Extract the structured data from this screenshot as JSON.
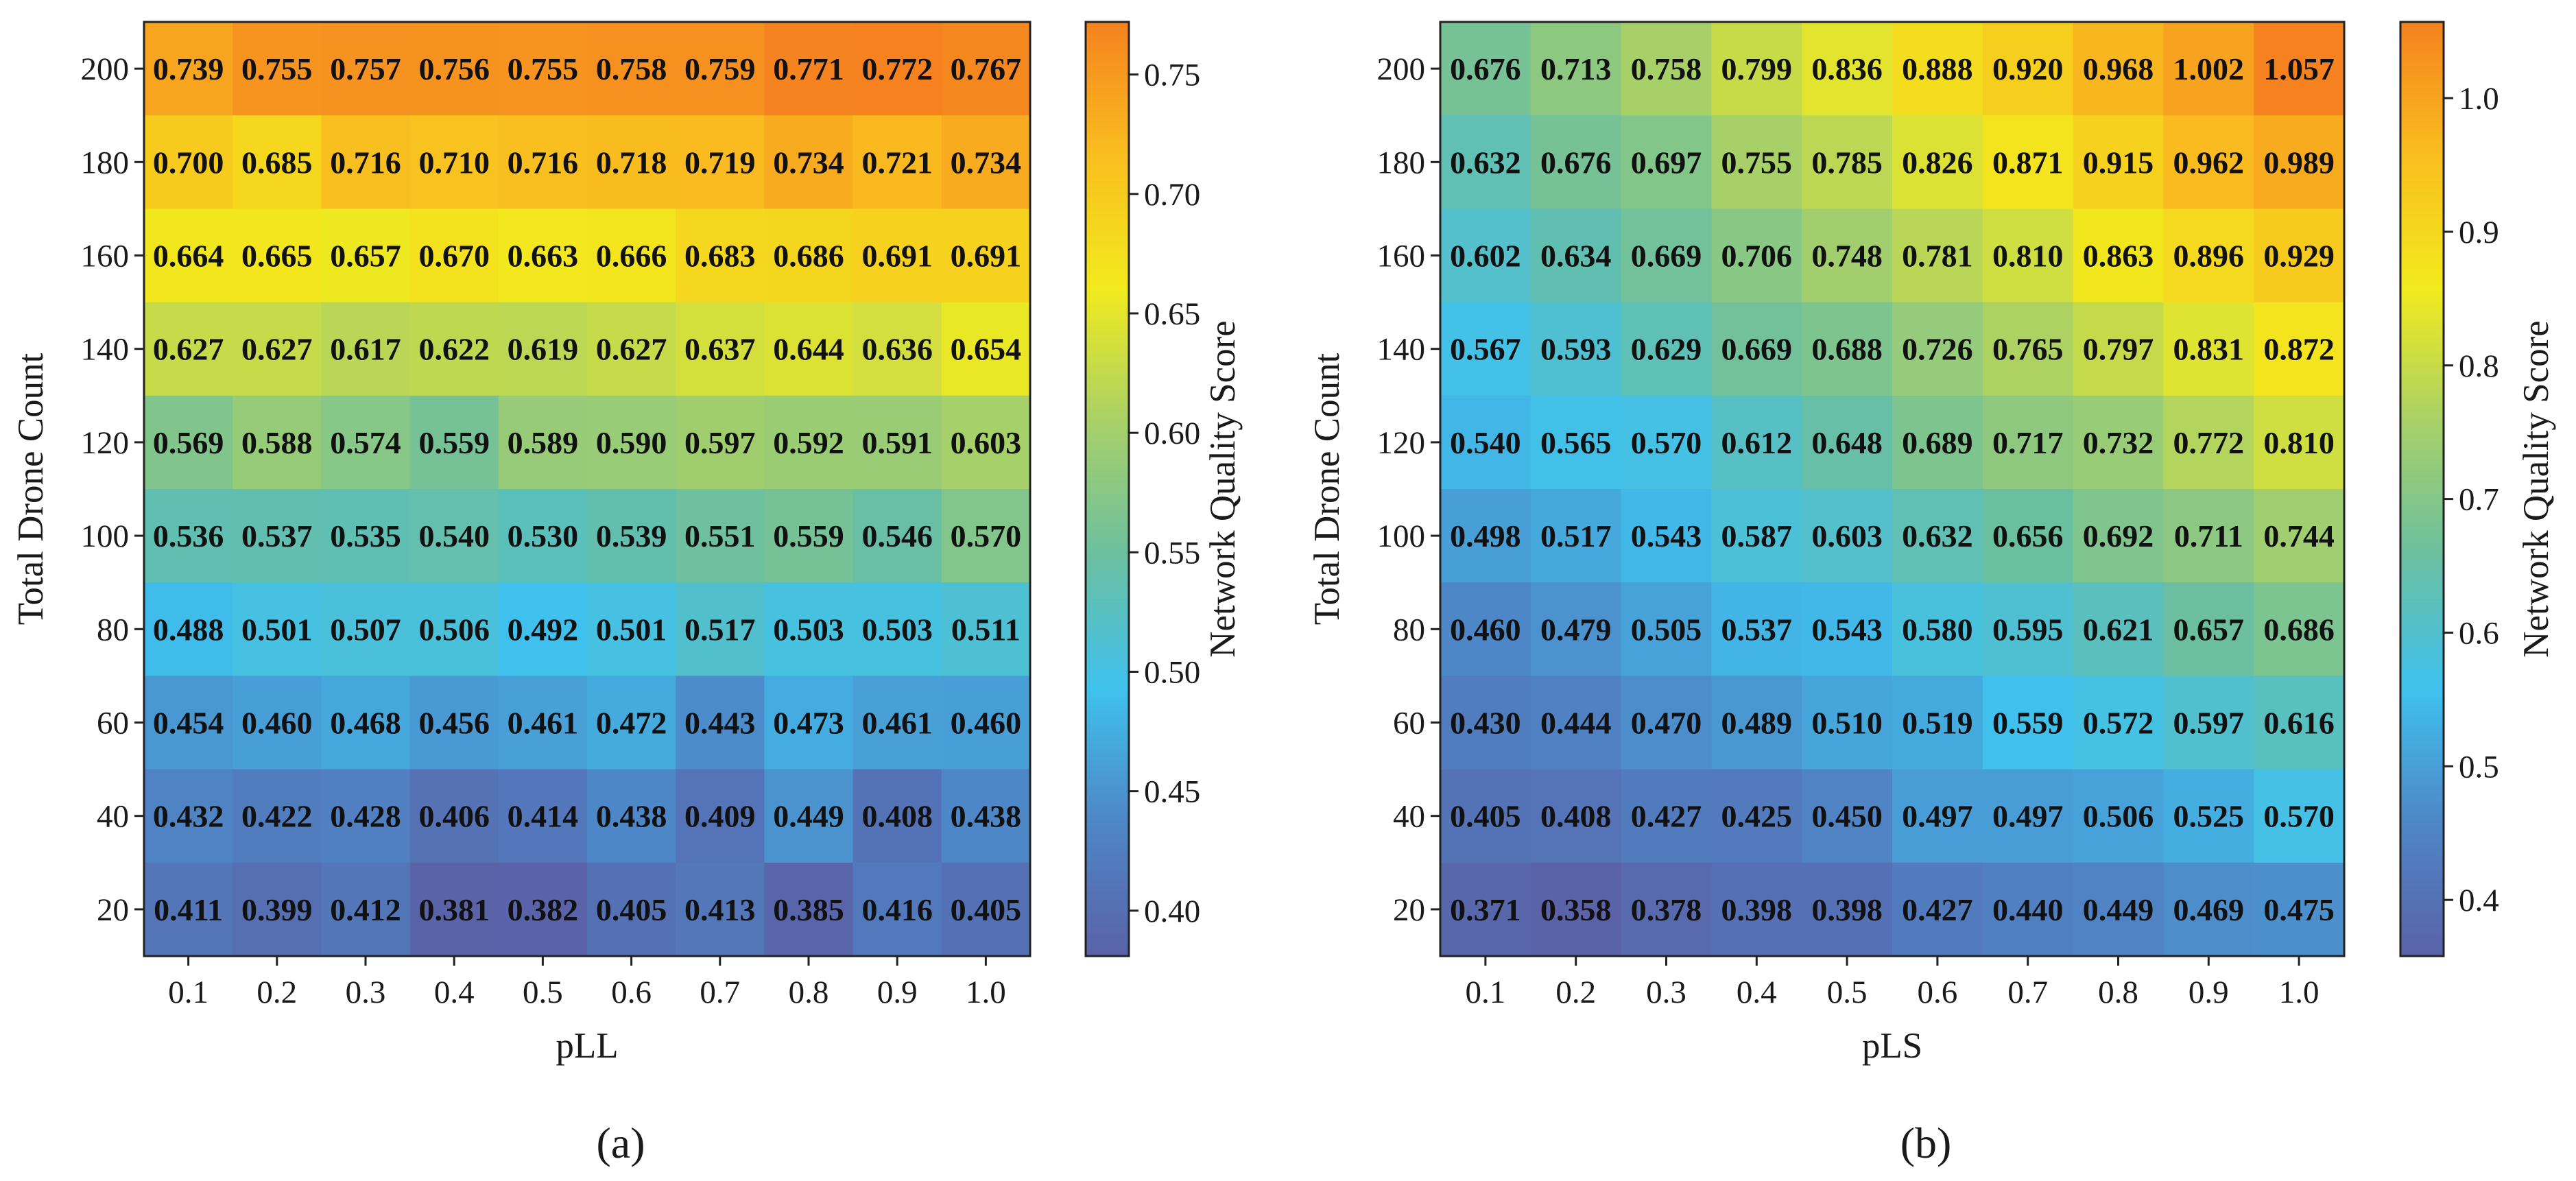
{
  "chart_data": [
    {
      "type": "heatmap",
      "panel_label": "(a)",
      "xlabel": "pLL",
      "ylabel": "Total Drone Count",
      "colorbar_label": "Network Quality Score",
      "x": [
        "0.1",
        "0.2",
        "0.3",
        "0.4",
        "0.5",
        "0.6",
        "0.7",
        "0.8",
        "0.9",
        "1.0"
      ],
      "y": [
        "200",
        "180",
        "160",
        "140",
        "120",
        "100",
        "80",
        "60",
        "40",
        "20"
      ],
      "values": [
        [
          0.739,
          0.755,
          0.757,
          0.756,
          0.755,
          0.758,
          0.759,
          0.771,
          0.772,
          0.767
        ],
        [
          0.7,
          0.685,
          0.716,
          0.71,
          0.716,
          0.718,
          0.719,
          0.734,
          0.721,
          0.734
        ],
        [
          0.664,
          0.665,
          0.657,
          0.67,
          0.663,
          0.666,
          0.683,
          0.686,
          0.691,
          0.691
        ],
        [
          0.627,
          0.627,
          0.617,
          0.622,
          0.619,
          0.627,
          0.637,
          0.644,
          0.636,
          0.654
        ],
        [
          0.569,
          0.588,
          0.574,
          0.559,
          0.589,
          0.59,
          0.597,
          0.592,
          0.591,
          0.603
        ],
        [
          0.536,
          0.537,
          0.535,
          0.54,
          0.53,
          0.539,
          0.551,
          0.559,
          0.546,
          0.57
        ],
        [
          0.488,
          0.501,
          0.507,
          0.506,
          0.492,
          0.501,
          0.517,
          0.503,
          0.503,
          0.511
        ],
        [
          0.454,
          0.46,
          0.468,
          0.456,
          0.461,
          0.472,
          0.443,
          0.473,
          0.461,
          0.46
        ],
        [
          0.432,
          0.422,
          0.428,
          0.406,
          0.414,
          0.438,
          0.409,
          0.449,
          0.408,
          0.438
        ],
        [
          0.411,
          0.399,
          0.412,
          0.381,
          0.382,
          0.405,
          0.413,
          0.385,
          0.416,
          0.405
        ]
      ],
      "labels": [
        [
          "0.739",
          "0.755",
          "0.757",
          "0.756",
          "0.755",
          "0.758",
          "0.759",
          "0.771",
          "0.772",
          "0.767"
        ],
        [
          "0.700",
          "0.685",
          "0.716",
          "0.710",
          "0.716",
          "0.718",
          "0.719",
          "0.734",
          "0.721",
          "0.734"
        ],
        [
          "0.664",
          "0.665",
          "0.657",
          "0.670",
          "0.663",
          "0.666",
          "0.683",
          "0.686",
          "0.691",
          "0.691"
        ],
        [
          "0.627",
          "0.627",
          "0.617",
          "0.622",
          "0.619",
          "0.627",
          "0.637",
          "0.644",
          "0.636",
          "0.654"
        ],
        [
          "0.569",
          "0.588",
          "0.574",
          "0.559",
          "0.589",
          "0.590",
          "0.597",
          "0.592",
          "0.591",
          "0.603"
        ],
        [
          "0.536",
          "0.537",
          "0.535",
          "0.540",
          "0.530",
          "0.539",
          "0.551",
          "0.559",
          "0.546",
          "0.570"
        ],
        [
          "0.488",
          "0.501",
          "0.507",
          "0.506",
          "0.492",
          "0.501",
          "0.517",
          "0.503",
          "0.503",
          "0.511"
        ],
        [
          "0.454",
          "0.460",
          "0.468",
          "0.456",
          "0.461",
          "0.472",
          "0.443",
          "0.473",
          "0.461",
          "0.460"
        ],
        [
          "0.432",
          "0.422",
          "0.428",
          "0.406",
          "0.414",
          "0.438",
          "0.409",
          "0.449",
          "0.408",
          "0.438"
        ],
        [
          "0.411",
          "0.399",
          "0.412",
          "0.381",
          "0.382",
          "0.405",
          "0.413",
          "0.385",
          "0.416",
          "0.405"
        ]
      ],
      "color_range": [
        0.381,
        0.772
      ],
      "colorbar_ticks": [
        0.4,
        0.45,
        0.5,
        0.55,
        0.6,
        0.65,
        0.7,
        0.75
      ],
      "colorbar_tick_labels": [
        "0.40",
        "0.45",
        "0.50",
        "0.55",
        "0.60",
        "0.65",
        "0.70",
        "0.75"
      ]
    },
    {
      "type": "heatmap",
      "panel_label": "(b)",
      "xlabel": "pLS",
      "ylabel": "Total Drone Count",
      "colorbar_label": "Network Quality Score",
      "x": [
        "0.1",
        "0.2",
        "0.3",
        "0.4",
        "0.5",
        "0.6",
        "0.7",
        "0.8",
        "0.9",
        "1.0"
      ],
      "y": [
        "200",
        "180",
        "160",
        "140",
        "120",
        "100",
        "80",
        "60",
        "40",
        "20"
      ],
      "values": [
        [
          0.676,
          0.713,
          0.758,
          0.799,
          0.836,
          0.888,
          0.92,
          0.968,
          1.002,
          1.057
        ],
        [
          0.632,
          0.676,
          0.697,
          0.755,
          0.785,
          0.826,
          0.871,
          0.915,
          0.962,
          0.989
        ],
        [
          0.602,
          0.634,
          0.669,
          0.706,
          0.748,
          0.781,
          0.81,
          0.863,
          0.896,
          0.929
        ],
        [
          0.567,
          0.593,
          0.629,
          0.669,
          0.688,
          0.726,
          0.765,
          0.797,
          0.831,
          0.872
        ],
        [
          0.54,
          0.565,
          0.57,
          0.612,
          0.648,
          0.689,
          0.717,
          0.732,
          0.772,
          0.81
        ],
        [
          0.498,
          0.517,
          0.543,
          0.587,
          0.603,
          0.632,
          0.656,
          0.692,
          0.711,
          0.744
        ],
        [
          0.46,
          0.479,
          0.505,
          0.537,
          0.543,
          0.58,
          0.595,
          0.621,
          0.657,
          0.686
        ],
        [
          0.43,
          0.444,
          0.47,
          0.489,
          0.51,
          0.519,
          0.559,
          0.572,
          0.597,
          0.616
        ],
        [
          0.405,
          0.408,
          0.427,
          0.425,
          0.45,
          0.497,
          0.497,
          0.506,
          0.525,
          0.57
        ],
        [
          0.371,
          0.358,
          0.378,
          0.398,
          0.398,
          0.427,
          0.44,
          0.449,
          0.469,
          0.475
        ]
      ],
      "labels": [
        [
          "0.676",
          "0.713",
          "0.758",
          "0.799",
          "0.836",
          "0.888",
          "0.920",
          "0.968",
          "1.002",
          "1.057"
        ],
        [
          "0.632",
          "0.676",
          "0.697",
          "0.755",
          "0.785",
          "0.826",
          "0.871",
          "0.915",
          "0.962",
          "0.989"
        ],
        [
          "0.602",
          "0.634",
          "0.669",
          "0.706",
          "0.748",
          "0.781",
          "0.810",
          "0.863",
          "0.896",
          "0.929"
        ],
        [
          "0.567",
          "0.593",
          "0.629",
          "0.669",
          "0.688",
          "0.726",
          "0.765",
          "0.797",
          "0.831",
          "0.872"
        ],
        [
          "0.540",
          "0.565",
          "0.570",
          "0.612",
          "0.648",
          "0.689",
          "0.717",
          "0.732",
          "0.772",
          "0.810"
        ],
        [
          "0.498",
          "0.517",
          "0.543",
          "0.587",
          "0.603",
          "0.632",
          "0.656",
          "0.692",
          "0.711",
          "0.744"
        ],
        [
          "0.460",
          "0.479",
          "0.505",
          "0.537",
          "0.543",
          "0.580",
          "0.595",
          "0.621",
          "0.657",
          "0.686"
        ],
        [
          "0.430",
          "0.444",
          "0.470",
          "0.489",
          "0.510",
          "0.519",
          "0.559",
          "0.572",
          "0.597",
          "0.616"
        ],
        [
          "0.405",
          "0.408",
          "0.427",
          "0.425",
          "0.450",
          "0.497",
          "0.497",
          "0.506",
          "0.525",
          "0.570"
        ],
        [
          "0.371",
          "0.358",
          "0.378",
          "0.398",
          "0.398",
          "0.427",
          "0.440",
          "0.449",
          "0.469",
          "0.475"
        ]
      ],
      "color_range": [
        0.358,
        1.057
      ],
      "colorbar_ticks": [
        0.4,
        0.5,
        0.6,
        0.7,
        0.8,
        0.9,
        1.0
      ],
      "colorbar_tick_labels": [
        "0.4",
        "0.5",
        "0.6",
        "0.7",
        "0.8",
        "0.9",
        "1.0"
      ]
    }
  ],
  "colormap_colors": [
    "#5a62a8",
    "#4e86c6",
    "#3fc1ee",
    "#6bbfa0",
    "#a8d068",
    "#f2ea1d",
    "#f9be1f",
    "#f5821f"
  ]
}
